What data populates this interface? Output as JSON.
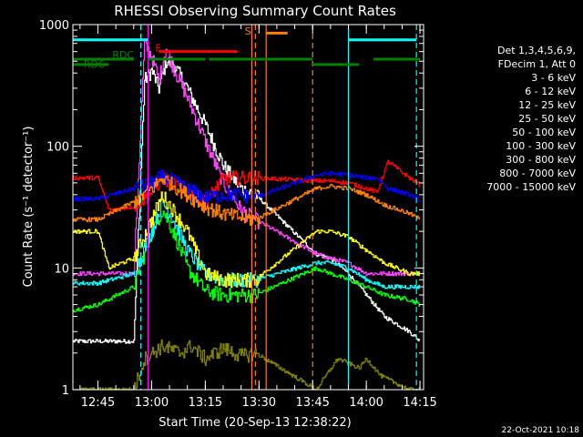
{
  "chart_data": {
    "type": "line",
    "title": "RHESSI Observing Summary Count Rates",
    "xlabel": "Start Time (20-Sep-13 12:38:22)",
    "ylabel": "Count Rate (s⁻¹ detector⁻¹)",
    "y_scale": "log",
    "ylim": [
      1,
      1000
    ],
    "xlim": [
      "12:38",
      "14:16"
    ],
    "x_ticks": [
      "12:45",
      "13:00",
      "13:15",
      "13:30",
      "13:45",
      "14:00",
      "14:15"
    ],
    "y_ticks": [
      "1",
      "10",
      "100",
      "1000"
    ],
    "legend_header": [
      "Det 1,3,4,5,6,9,",
      "FDecim 1, Att 0"
    ],
    "footer_date": "22-Oct-2021 10:18",
    "legend_placement": "right",
    "series": [
      {
        "name": "3 - 6 keV",
        "color": "#ffffff",
        "x": [
          "12:38",
          "12:55",
          "12:58",
          "13:00",
          "13:02",
          "13:04",
          "13:06",
          "13:10",
          "13:15",
          "13:20",
          "13:25",
          "13:29",
          "13:46",
          "13:50",
          "13:55",
          "14:00",
          "14:05",
          "14:12",
          "14:15"
        ],
        "y": [
          2.5,
          2.5,
          350,
          420,
          300,
          500,
          480,
          300,
          150,
          70,
          45,
          40,
          13,
          12,
          9,
          6,
          4,
          3,
          2.5
        ]
      },
      {
        "name": "6 - 12 keV",
        "color": "#ff40ff",
        "x": [
          "12:38",
          "12:55",
          "12:58",
          "13:00",
          "13:02",
          "13:04",
          "13:06",
          "13:10",
          "13:15",
          "13:20",
          "13:25",
          "13:29",
          "13:46",
          "13:50",
          "13:55",
          "14:00",
          "14:05",
          "14:12",
          "14:15"
        ],
        "y": [
          9,
          9,
          700,
          550,
          350,
          650,
          450,
          250,
          110,
          50,
          30,
          25,
          13,
          12,
          11,
          9,
          9,
          9,
          9
        ]
      },
      {
        "name": "12 - 25 keV",
        "color": "#00ff00",
        "x": [
          "12:38",
          "12:45",
          "12:55",
          "13:00",
          "13:03",
          "13:06",
          "13:10",
          "13:15",
          "13:20",
          "13:25",
          "13:29",
          "13:46",
          "13:50",
          "13:55",
          "14:00",
          "14:05",
          "14:12",
          "14:15"
        ],
        "y": [
          4.5,
          5,
          7,
          20,
          30,
          20,
          10,
          6.5,
          6,
          6,
          6,
          10,
          9,
          8,
          7,
          6,
          5.5,
          5
        ]
      },
      {
        "name": "25 - 50 keV",
        "color": "#00ffff",
        "x": [
          "12:38",
          "12:45",
          "12:55",
          "13:00",
          "13:03",
          "13:06",
          "13:10",
          "13:15",
          "13:20",
          "13:25",
          "13:29",
          "13:46",
          "13:50",
          "13:55",
          "14:00",
          "14:05",
          "14:12",
          "14:15"
        ],
        "y": [
          7.5,
          7.5,
          9,
          20,
          35,
          25,
          14,
          9,
          8,
          8,
          8,
          11,
          11,
          10,
          8,
          7,
          7,
          7
        ]
      },
      {
        "name": "50 - 100 keV",
        "color": "#ffff00",
        "x": [
          "12:38",
          "12:45",
          "12:48",
          "12:55",
          "13:00",
          "13:03",
          "13:06",
          "13:10",
          "13:15",
          "13:20",
          "13:25",
          "13:29",
          "13:46",
          "13:50",
          "13:55",
          "14:00",
          "14:05",
          "14:12",
          "14:15"
        ],
        "y": [
          20,
          20,
          10,
          12,
          25,
          40,
          30,
          20,
          9,
          8,
          8,
          8,
          20,
          20,
          18,
          14,
          11,
          9,
          9
        ]
      },
      {
        "name": "100 - 300 keV",
        "color": "#ff0000",
        "x": [
          "12:38",
          "12:45",
          "12:48",
          "12:55",
          "13:00",
          "13:03",
          "13:06",
          "13:10",
          "13:15",
          "13:20",
          "13:25",
          "13:29",
          "13:46",
          "13:50",
          "13:55",
          "14:00",
          "14:03",
          "14:06",
          "14:12",
          "14:15"
        ],
        "y": [
          55,
          55,
          30,
          32,
          42,
          55,
          50,
          42,
          35,
          55,
          55,
          55,
          52,
          52,
          50,
          45,
          42,
          75,
          55,
          48
        ]
      },
      {
        "name": "300 - 800 keV",
        "color": "#0000ff",
        "x": [
          "12:38",
          "12:45",
          "12:55",
          "13:00",
          "13:03",
          "13:06",
          "13:10",
          "13:15",
          "13:20",
          "13:25",
          "13:29",
          "13:46",
          "13:50",
          "13:55",
          "14:00",
          "14:03",
          "14:06",
          "14:12",
          "14:15"
        ],
        "y": [
          37,
          37,
          45,
          50,
          57,
          52,
          45,
          38,
          40,
          40,
          38,
          58,
          60,
          58,
          55,
          55,
          45,
          40,
          36
        ]
      },
      {
        "name": "800 - 7000 keV",
        "color": "#ff8000",
        "x": [
          "12:38",
          "12:45",
          "12:55",
          "13:00",
          "13:03",
          "13:06",
          "13:10",
          "13:15",
          "13:20",
          "13:25",
          "13:29",
          "13:46",
          "13:50",
          "13:55",
          "14:00",
          "14:05",
          "14:12",
          "14:15"
        ],
        "y": [
          25,
          25,
          35,
          45,
          55,
          48,
          40,
          32,
          28,
          26,
          25,
          45,
          47,
          45,
          40,
          33,
          28,
          25
        ]
      },
      {
        "name": "7000 - 15000 keV",
        "color": "#808000",
        "x": [
          "12:38",
          "12:55",
          "12:58",
          "13:03",
          "13:08",
          "13:11",
          "13:15",
          "13:20",
          "13:25",
          "13:29",
          "13:46",
          "13:52",
          "13:58",
          "14:00",
          "14:04",
          "14:12",
          "14:15"
        ],
        "y": [
          1,
          1,
          1.8,
          2.3,
          2,
          2.3,
          1.8,
          2.2,
          1.9,
          2,
          1,
          1.8,
          1.5,
          1.8,
          1.3,
          1,
          1
        ]
      }
    ],
    "markers": {
      "vlines": [
        {
          "x": "12:57",
          "color": "#00ffff",
          "dash": true
        },
        {
          "x": "12:59",
          "color": "#ff00ff",
          "dash": false
        },
        {
          "x": "13:28",
          "color": "#ff8000",
          "dash": false
        },
        {
          "x": "13:29",
          "color": "#ff8000",
          "dash": true
        },
        {
          "x": "13:32",
          "color": "#ff8000",
          "dash": false
        },
        {
          "x": "13:45",
          "color": "#ff8000",
          "dash": true
        },
        {
          "x": "13:55",
          "color": "#00ffff",
          "dash": false
        },
        {
          "x": "14:14",
          "color": "#00ffff",
          "dash": true
        }
      ],
      "segments": [
        {
          "x1": "12:38",
          "x2": "12:59",
          "y": 750,
          "color": "#00ffff"
        },
        {
          "x1": "13:55",
          "x2": "14:14",
          "y": 750,
          "color": "#00ffff"
        },
        {
          "x1": "13:02",
          "x2": "13:24",
          "y": 600,
          "color": "#ff0000"
        },
        {
          "x1": "13:32",
          "x2": "13:38",
          "y": 850,
          "color": "#ff8000"
        },
        {
          "x1": "12:38",
          "x2": "12:55",
          "y": 520,
          "color": "#008000"
        },
        {
          "x1": "12:59",
          "x2": "13:15",
          "y": 520,
          "color": "#008000"
        },
        {
          "x1": "13:16",
          "x2": "13:45",
          "y": 520,
          "color": "#008000"
        },
        {
          "x1": "13:45",
          "x2": "13:58",
          "y": 470,
          "color": "#008000"
        },
        {
          "x1": "14:02",
          "x2": "14:15",
          "y": 520,
          "color": "#008000"
        },
        {
          "x1": "12:38",
          "x2": "12:48",
          "y": 470,
          "color": "#008000"
        }
      ],
      "labels": [
        {
          "text": "F",
          "x": "13:01",
          "y": 600,
          "color": "#ff0000"
        },
        {
          "text": "RDC",
          "x": "12:49",
          "y": 530,
          "color": "#008000"
        },
        {
          "text": "RD6",
          "x": "12:41",
          "y": 440,
          "color": "#008000"
        },
        {
          "text": "S",
          "x": "13:26",
          "y": 830,
          "color": "#ff8000"
        }
      ]
    }
  }
}
